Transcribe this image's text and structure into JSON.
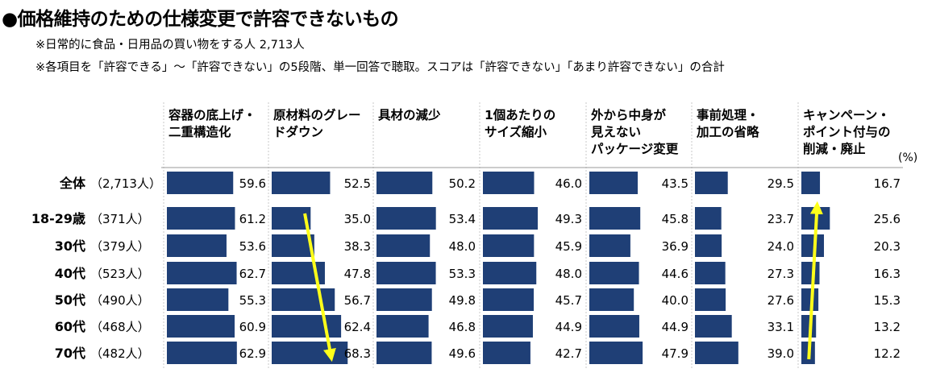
{
  "title": "●価格維持のための仕様変更で許容できないもの",
  "notes": [
    "※日常的に食品・日用品の買い物をする人 2,713人",
    "※各項目を「許容できる」〜「許容できない」の5段階、単一回答で聴取。スコアは「許容できない」「あまり許容できない」の合計"
  ],
  "chart_data": {
    "type": "bar",
    "orientation": "horizontal-small-multiples",
    "unit": "(%)",
    "columns": [
      {
        "label_lines": [
          "容器の底上げ・",
          "二重構造化"
        ]
      },
      {
        "label_lines": [
          "原材料のグレー",
          "ドダウン"
        ]
      },
      {
        "label_lines": [
          "具材の減少"
        ]
      },
      {
        "label_lines": [
          "1個あたりの",
          "サイズ縮小"
        ]
      },
      {
        "label_lines": [
          "外から中身が",
          "見えない",
          "パッケージ変更"
        ]
      },
      {
        "label_lines": [
          "事前処理・",
          "加工の省略"
        ]
      },
      {
        "label_lines": [
          "キャンペーン・",
          "ポイント付与の",
          "削減・廃止"
        ]
      }
    ],
    "rows": [
      {
        "label": "全体",
        "count": "（2,713人）",
        "values": [
          59.6,
          52.5,
          50.2,
          46.0,
          43.5,
          29.5,
          16.7
        ]
      },
      {
        "label": "18-29歳",
        "count": "（371人）",
        "values": [
          61.2,
          35.0,
          53.4,
          49.3,
          45.8,
          23.7,
          25.6
        ]
      },
      {
        "label": "30代",
        "count": "（379人）",
        "values": [
          53.6,
          38.3,
          48.0,
          45.9,
          36.9,
          24.0,
          20.3
        ]
      },
      {
        "label": "40代",
        "count": "（523人）",
        "values": [
          62.7,
          47.8,
          53.3,
          48.0,
          44.6,
          27.3,
          16.3
        ]
      },
      {
        "label": "50代",
        "count": "（490人）",
        "values": [
          55.3,
          56.7,
          49.8,
          45.7,
          40.0,
          27.6,
          15.3
        ]
      },
      {
        "label": "60代",
        "count": "（468人）",
        "values": [
          60.9,
          62.4,
          46.8,
          44.9,
          44.9,
          33.1,
          13.2
        ]
      },
      {
        "label": "70代",
        "count": "（482人）",
        "values": [
          62.9,
          68.3,
          49.6,
          42.7,
          47.9,
          39.0,
          12.2
        ]
      }
    ],
    "bar_color": "#1f3f76",
    "arrow_color": "#ffff1a",
    "annotations": [
      {
        "type": "arrow",
        "column": 1,
        "from_row": 1,
        "to_row": 6
      },
      {
        "type": "arrow",
        "column": 6,
        "from_row": 6,
        "to_row": 1
      }
    ]
  }
}
